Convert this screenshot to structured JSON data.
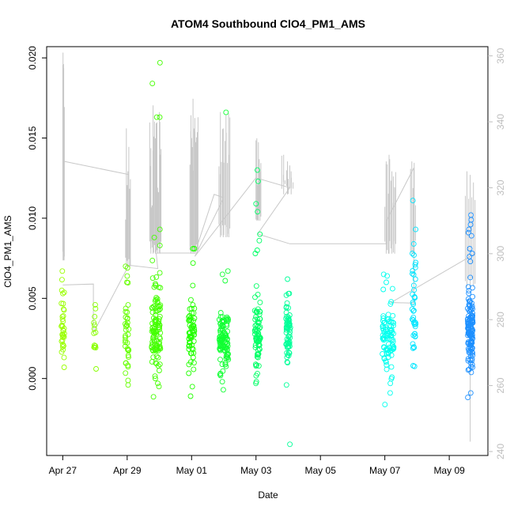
{
  "chart_data": {
    "type": "scatter",
    "title": "ATOM4 Southbound ClO4_PM1_AMS",
    "xlabel": "Date",
    "ylabel": "ClO4_PM1_AMS",
    "x_axis": {
      "unit": "days since Apr 27",
      "range": [
        -0.5,
        13.2
      ],
      "ticks": [
        {
          "value": 0,
          "label": "Apr 27"
        },
        {
          "value": 2,
          "label": "Apr 29"
        },
        {
          "value": 4,
          "label": "May 01"
        },
        {
          "value": 6,
          "label": "May 03"
        },
        {
          "value": 8,
          "label": "May 05"
        },
        {
          "value": 10,
          "label": "May 07"
        },
        {
          "value": 12,
          "label": "May 09"
        }
      ]
    },
    "y_left": {
      "range": [
        -0.0048,
        0.0207
      ],
      "ticks": [
        {
          "value": 0.0,
          "label": "0.000"
        },
        {
          "value": 0.005,
          "label": "0.005"
        },
        {
          "value": 0.01,
          "label": "0.010"
        },
        {
          "value": 0.015,
          "label": "0.015"
        },
        {
          "value": 0.02,
          "label": "0.020"
        }
      ]
    },
    "y_right": {
      "note": "secondary axis for grey trace (altitude-like)",
      "range": [
        238.8,
        362.8
      ],
      "ticks": [
        {
          "value": 240,
          "label": "240"
        },
        {
          "value": 260,
          "label": "260"
        },
        {
          "value": 280,
          "label": "280"
        },
        {
          "value": 300,
          "label": "300"
        },
        {
          "value": 320,
          "label": "320"
        },
        {
          "value": 340,
          "label": "340"
        },
        {
          "value": 360,
          "label": "360"
        }
      ]
    },
    "clusters": [
      {
        "x": 0.0,
        "spread": 0.05,
        "color": "#99ff00",
        "n": 30,
        "center": 0.003,
        "sd": 0.0011,
        "extra": [
          0.0067,
          0.0055,
          0.0053,
          0.0007
        ]
      },
      {
        "x": 1.0,
        "spread": 0.04,
        "color": "#88ff00",
        "n": 12,
        "center": 0.0027,
        "sd": 0.0009,
        "extra": [
          0.0046,
          0.0006
        ]
      },
      {
        "x": 2.0,
        "spread": 0.06,
        "color": "#66ff00",
        "n": 35,
        "center": 0.0028,
        "sd": 0.0012,
        "extra": [
          0.007,
          0.0069,
          0.006,
          -0.0004
        ]
      },
      {
        "x": 2.9,
        "spread": 0.14,
        "color": "#44ff00",
        "n": 110,
        "center": 0.0032,
        "sd": 0.0015,
        "extra": [
          0.0197,
          0.0184,
          0.0163,
          0.0163,
          0.0093,
          0.0088,
          0.0083,
          -0.0005,
          -0.0003
        ]
      },
      {
        "x": 4.0,
        "spread": 0.09,
        "color": "#22ff00",
        "n": 60,
        "center": 0.0025,
        "sd": 0.0009,
        "extra": [
          0.0081,
          0.0081,
          0.0072,
          0.0058,
          -0.0011
        ]
      },
      {
        "x": 5.0,
        "spread": 0.14,
        "color": "#11ff33",
        "n": 100,
        "center": 0.0025,
        "sd": 0.0011,
        "extra": [
          0.0166,
          0.0067,
          0.0065,
          -0.0007,
          -0.0002
        ]
      },
      {
        "x": 6.05,
        "spread": 0.09,
        "color": "#00ff66",
        "n": 75,
        "center": 0.0027,
        "sd": 0.001,
        "extra": [
          0.013,
          0.0123,
          0.0109,
          0.0104,
          0.009,
          0.0086,
          0.008,
          0.0078,
          -0.0002
        ]
      },
      {
        "x": 7.0,
        "spread": 0.07,
        "color": "#00ff99",
        "n": 60,
        "center": 0.0028,
        "sd": 0.001,
        "extra": [
          0.0062,
          0.0053,
          0.0052,
          -0.0004,
          -0.0041
        ]
      },
      {
        "x": 10.1,
        "spread": 0.18,
        "color": "#00ffee",
        "n": 85,
        "center": 0.0024,
        "sd": 0.001,
        "extra": [
          0.0065,
          0.0064,
          0.006,
          0.0056,
          -0.0003,
          -0.0009
        ]
      },
      {
        "x": 10.9,
        "spread": 0.06,
        "color": "#00e5ff",
        "n": 35,
        "center": 0.0036,
        "sd": 0.0015,
        "extra": [
          0.0111,
          0.0093,
          0.0084,
          0.0078,
          0.0077,
          0.0071,
          0.0062,
          0.0008
        ]
      },
      {
        "x": 12.65,
        "spread": 0.08,
        "color": "#1e90ff",
        "n": 130,
        "center": 0.0031,
        "sd": 0.0015,
        "extra": [
          0.0102,
          0.0099,
          0.0096,
          0.0093,
          0.0091,
          0.0089,
          0.0081,
          0.0078,
          0.0076,
          0.0073,
          -0.0009
        ]
      }
    ],
    "altitude_trace": {
      "segments": [
        {
          "x0": 0.0,
          "x1": 0.05,
          "base": 298,
          "spikes": [
            361,
            350,
            330
          ]
        },
        {
          "x0": 0.05,
          "x1": 2.05,
          "base": 328,
          "jump_to": 296
        },
        {
          "x0": 1.95,
          "x1": 2.1,
          "base": 296,
          "spikes": [
            338,
            325,
            312
          ]
        },
        {
          "x0": 2.7,
          "x1": 3.05,
          "base": 300,
          "spikes": [
            332,
            345,
            335,
            320,
            340
          ]
        },
        {
          "x0": 3.95,
          "x1": 4.2,
          "base": 300,
          "spikes": [
            342,
            347,
            337,
            330
          ]
        },
        {
          "x0": 4.85,
          "x1": 5.2,
          "base": 305,
          "spikes": [
            343,
            338,
            342,
            330
          ]
        },
        {
          "x0": 6.0,
          "x1": 6.15,
          "base": 310,
          "spikes": [
            335,
            330,
            325
          ]
        },
        {
          "x0": 6.8,
          "x1": 7.15,
          "base": 318,
          "spikes": [
            330,
            328,
            325
          ]
        },
        {
          "x0": 10.0,
          "x1": 10.35,
          "base": 300,
          "spikes": [
            328,
            330,
            325,
            320
          ]
        },
        {
          "x0": 10.8,
          "x1": 10.95,
          "base": 300,
          "spikes": [
            328,
            320
          ]
        },
        {
          "x0": 12.5,
          "x1": 12.8,
          "base": 290,
          "spikes": [
            325,
            320,
            318
          ]
        }
      ],
      "connectors": [
        [
          0.0,
          290.5
        ],
        [
          0.95,
          290.8
        ],
        [
          0.95,
          276
        ],
        [
          2.05,
          296.5
        ],
        [
          2.95,
          295.5
        ],
        [
          2.9,
          300.2
        ],
        [
          4.1,
          300.2
        ],
        [
          4.7,
          318
        ],
        [
          5.0,
          317
        ],
        [
          4.1,
          299.2
        ],
        [
          6.0,
          323
        ],
        [
          7.05,
          320
        ],
        [
          6.05,
          306
        ],
        [
          7.05,
          303
        ],
        [
          10.05,
          303
        ],
        [
          10.05,
          310
        ],
        [
          10.9,
          326
        ],
        [
          10.9,
          285
        ],
        [
          10.2,
          285.2
        ],
        [
          12.8,
          300
        ]
      ],
      "deep_spike": {
        "x": 12.65,
        "min": 243,
        "max": 275
      }
    }
  }
}
